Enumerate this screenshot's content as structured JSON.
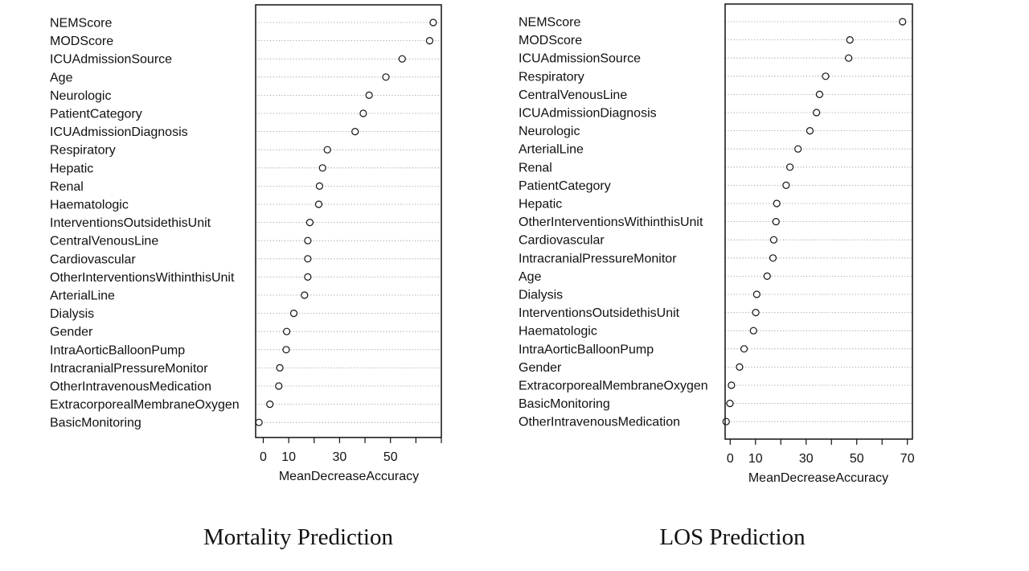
{
  "chart_data": [
    {
      "type": "scatter",
      "title": "Mortality Prediction",
      "xlabel": "MeanDecreaseAccuracy",
      "ylabel": "",
      "xlim": [
        -3,
        70
      ],
      "xticks": [
        0,
        10,
        30,
        50
      ],
      "grid": "dotted horizontal",
      "categories": [
        "NEMScore",
        "MODScore",
        "ICUAdmissionSource",
        "Age",
        "Neurologic",
        "PatientCategory",
        "ICUAdmissionDiagnosis",
        "Respiratory",
        "Hepatic",
        "Renal",
        "Haematologic",
        "InterventionsOutsidethisUnit",
        "CentralVenousLine",
        "Cardiovascular",
        "OtherInterventionsWithinthisUnit",
        "ArterialLine",
        "Dialysis",
        "Gender",
        "IntraAorticBalloonPump",
        "IntracranialPressureMonitor",
        "OtherIntravenousMedication",
        "ExtracorporealMembraneOxygen",
        "BasicMonitoring"
      ],
      "values": [
        66.8,
        65.4,
        54.6,
        48.2,
        41.6,
        39.3,
        36.1,
        25.2,
        23.3,
        22.1,
        21.8,
        18.3,
        17.5,
        17.5,
        17.5,
        16.2,
        12.0,
        9.2,
        9.0,
        6.5,
        6.1,
        2.6,
        -1.7
      ]
    },
    {
      "type": "scatter",
      "title": "LOS Prediction",
      "xlabel": "MeanDecreaseAccuracy",
      "ylabel": "",
      "xlim": [
        -2,
        72
      ],
      "xticks": [
        0,
        10,
        30,
        50,
        70
      ],
      "grid": "dotted horizontal",
      "categories": [
        "NEMScore",
        "MODScore",
        "ICUAdmissionSource",
        "Respiratory",
        "CentralVenousLine",
        "ICUAdmissionDiagnosis",
        "Neurologic",
        "ArterialLine",
        "Renal",
        "PatientCategory",
        "Hepatic",
        "OtherInterventionsWithinthisUnit",
        "Cardiovascular",
        "IntracranialPressureMonitor",
        "Age",
        "Dialysis",
        "InterventionsOutsidethisUnit",
        "Haematologic",
        "IntraAorticBalloonPump",
        "Gender",
        "ExtracorporealMembraneOxygen",
        "BasicMonitoring",
        "OtherIntravenousMedication"
      ],
      "values": [
        68.1,
        47.3,
        46.8,
        37.7,
        35.3,
        34.1,
        31.5,
        26.8,
        23.6,
        22.1,
        18.4,
        18.1,
        17.2,
        16.9,
        14.6,
        10.5,
        10.1,
        9.2,
        5.5,
        3.7,
        0.5,
        -0.1,
        -1.6
      ]
    }
  ]
}
